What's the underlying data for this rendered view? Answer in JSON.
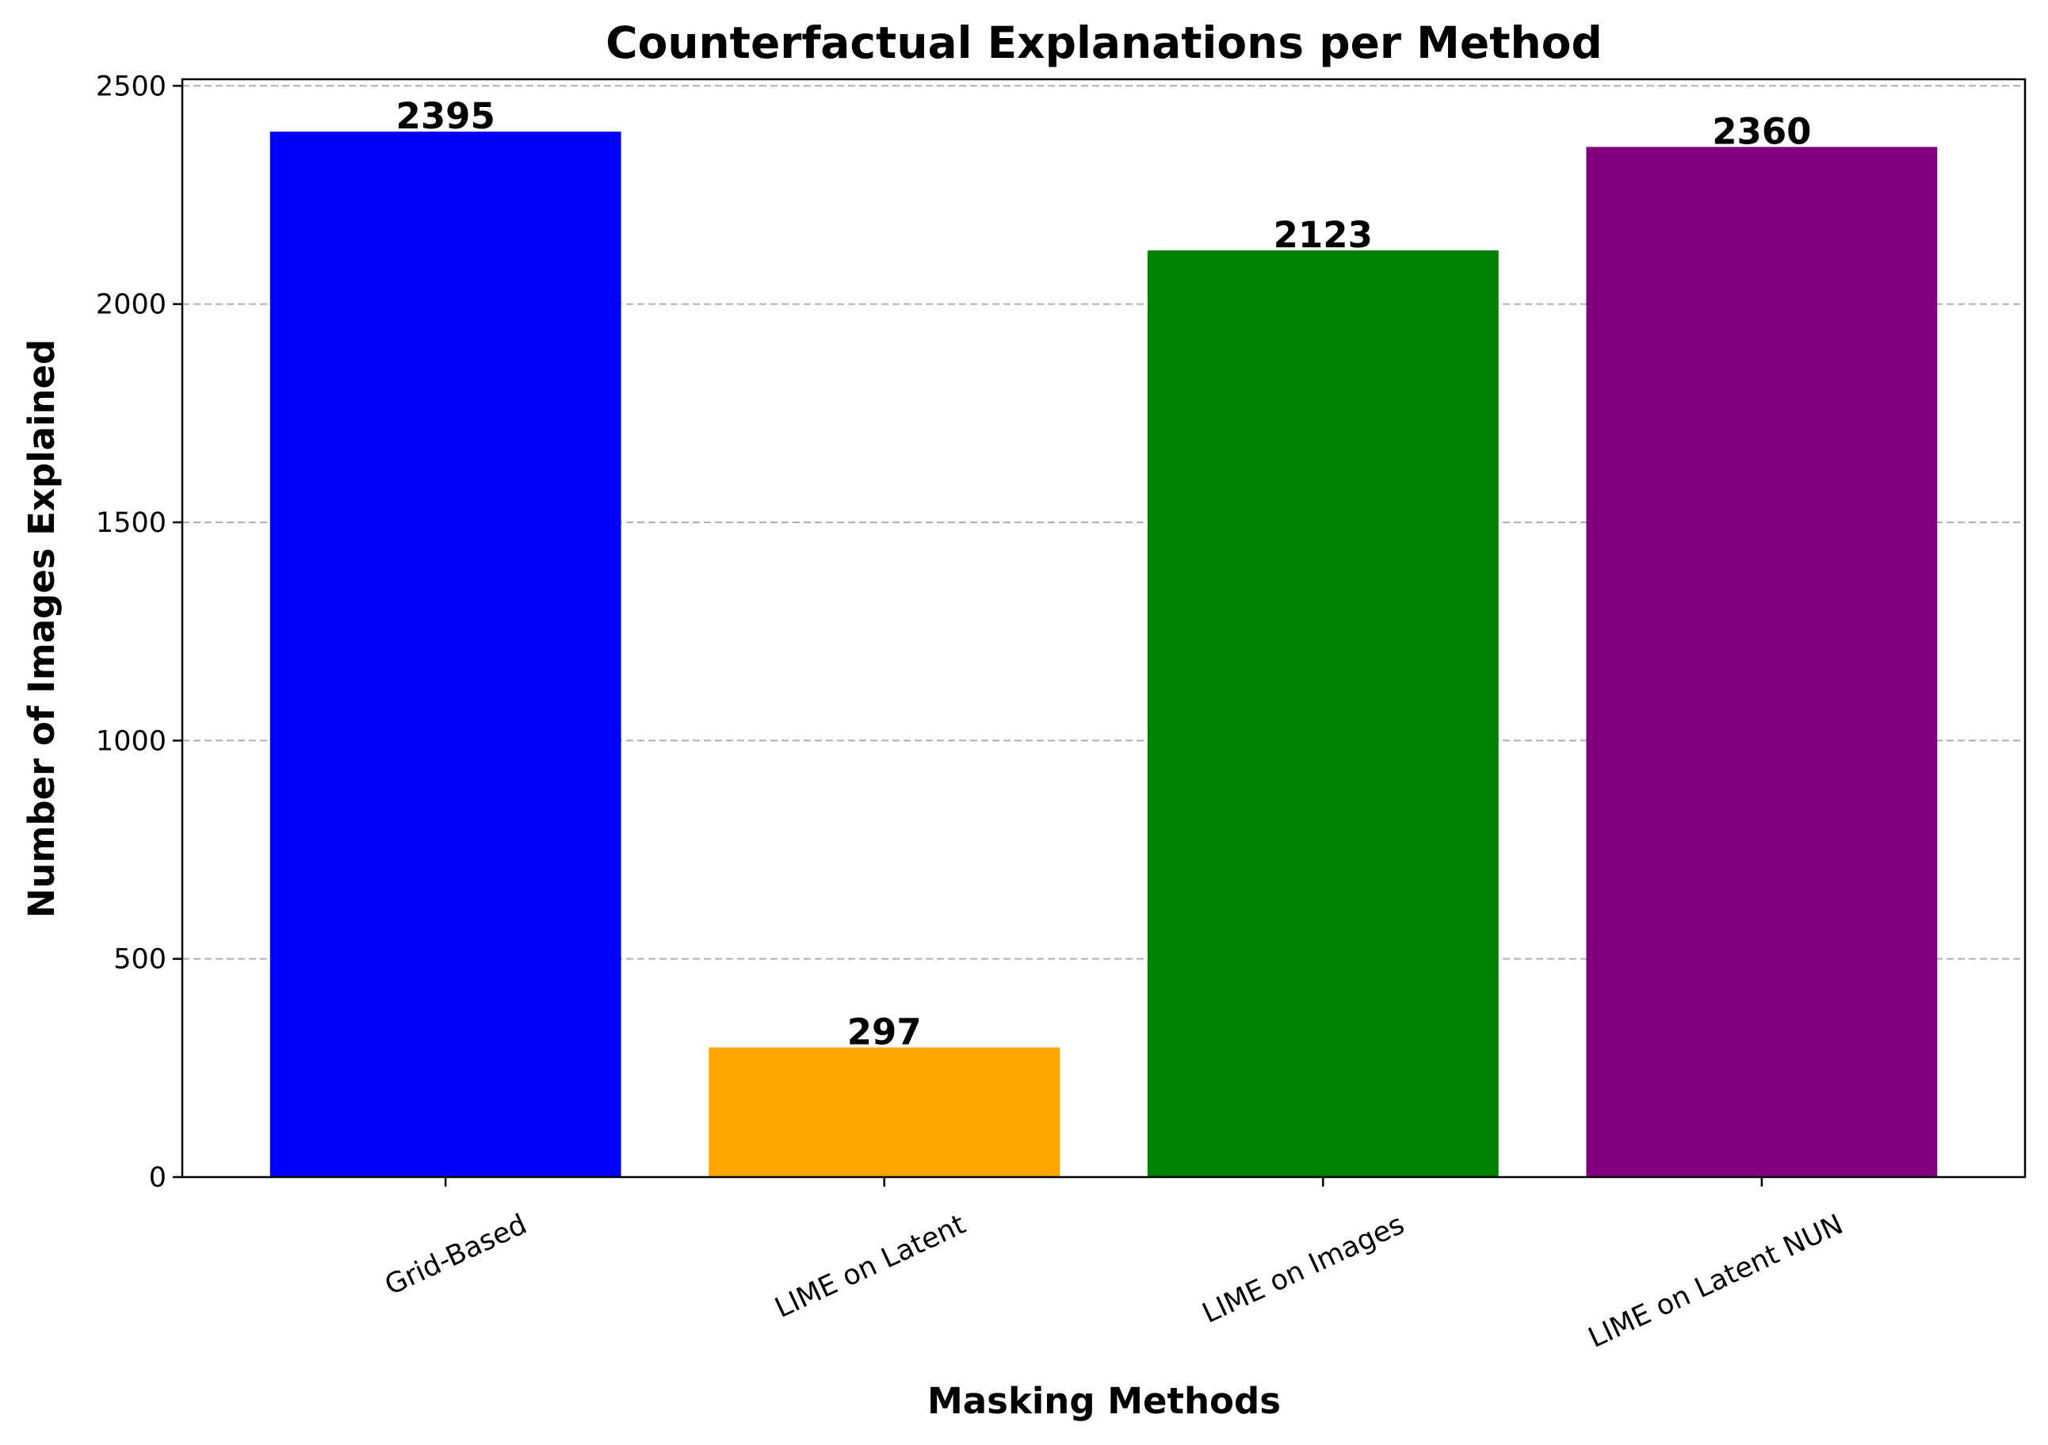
{
  "chart_data": {
    "type": "bar",
    "title": "Counterfactual Explanations per Method",
    "xlabel": "Masking Methods",
    "ylabel": "Number of Images Explained",
    "categories": [
      "Grid-Based",
      "LIME on Latent",
      "LIME on Images",
      "LIME on Latent NUN"
    ],
    "values": [
      2395,
      297,
      2123,
      2360
    ],
    "value_labels": [
      "2395",
      "297",
      "2123",
      "2360"
    ],
    "colors": [
      "#0000ff",
      "#ffa500",
      "#008000",
      "#800080"
    ],
    "ylim": [
      0,
      2515
    ],
    "yticks": [
      0,
      500,
      1000,
      1500,
      2000,
      2500
    ],
    "ytick_labels": [
      "0",
      "500",
      "1000",
      "1500",
      "2000",
      "2500"
    ],
    "grid": "y-dashed",
    "legend": "none"
  }
}
